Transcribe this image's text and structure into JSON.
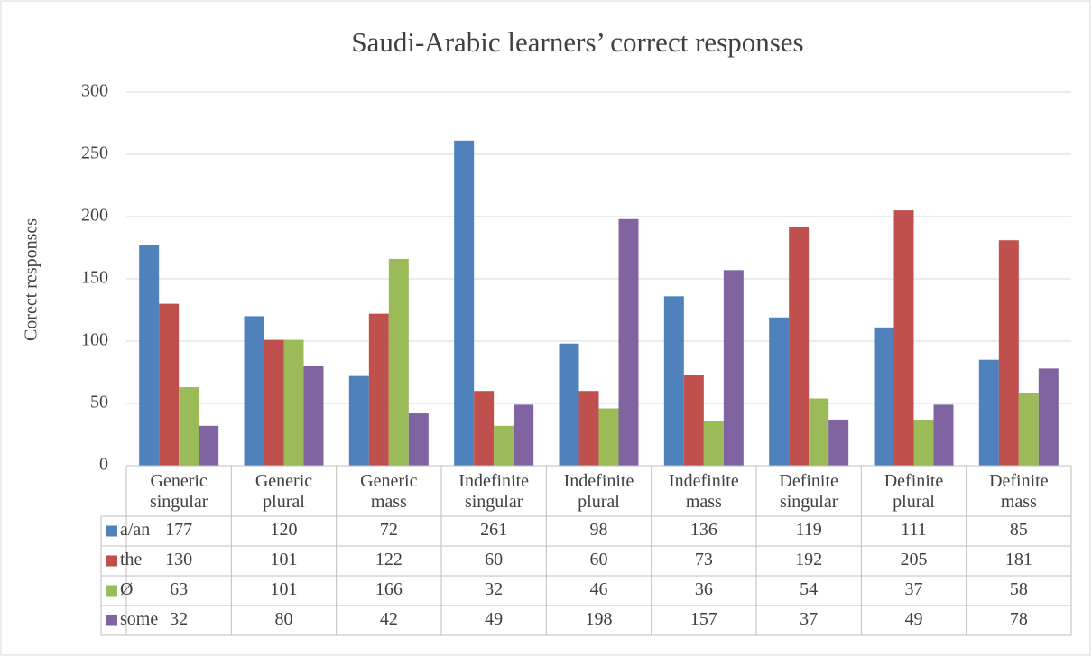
{
  "chart_data": {
    "type": "bar",
    "title": "Saudi-Arabic learners’ correct responses",
    "y_label": "Corect responses",
    "categories": [
      "Generic singular",
      "Generic plural",
      "Generic mass",
      "Indefinite singular",
      "Indefinite plural",
      "Indefinite mass",
      "Definite singular",
      "Definite plural",
      "Definite mass"
    ],
    "series": [
      {
        "name": "a/an",
        "color": "#4f81bd",
        "values": [
          177,
          120,
          72,
          261,
          98,
          136,
          119,
          111,
          85
        ]
      },
      {
        "name": "the",
        "color": "#c0504d",
        "values": [
          130,
          101,
          122,
          60,
          60,
          73,
          192,
          205,
          181
        ]
      },
      {
        "name": "Ø",
        "color": "#9bbb59",
        "values": [
          63,
          101,
          166,
          32,
          46,
          36,
          54,
          37,
          58
        ]
      },
      {
        "name": "some",
        "color": "#8064a2",
        "values": [
          32,
          80,
          42,
          49,
          198,
          157,
          37,
          49,
          78
        ]
      }
    ],
    "ylim": [
      0,
      300
    ],
    "yticks": [
      0,
      50,
      100,
      150,
      200,
      250,
      300
    ],
    "grid": true,
    "data_table": true
  }
}
